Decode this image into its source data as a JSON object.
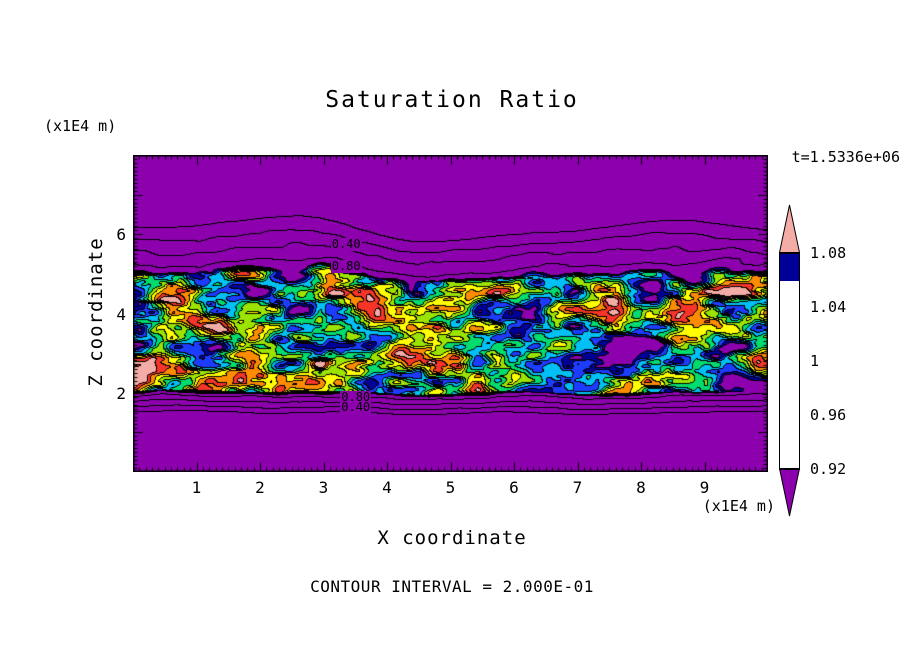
{
  "chart_data": {
    "type": "heatmap",
    "subtype": "filled-contour",
    "title": "Saturation Ratio",
    "xlabel": "X coordinate",
    "ylabel": "Z coordinate",
    "x_unit": "(x1E4 m)",
    "y_unit": "(x1E4 m)",
    "time_annotation": "t=1.5336e+06",
    "contour_interval_label": "CONTOUR INTERVAL = 2.000E-01",
    "contour_interval": 0.2,
    "x_range": [
      0,
      10
    ],
    "z_range": [
      0,
      8
    ],
    "x_ticks": [
      "1",
      "2",
      "3",
      "4",
      "5",
      "6",
      "7",
      "8",
      "9"
    ],
    "z_ticks": [
      "2",
      "4",
      "6"
    ],
    "contour_line_labels": [
      {
        "text": "0.40",
        "x": 3.35,
        "z": 5.74
      },
      {
        "text": "0.80",
        "x": 3.35,
        "z": 5.18
      },
      {
        "text": "0.80",
        "x": 3.5,
        "z": 1.87
      },
      {
        "text": "0.40",
        "x": 3.5,
        "z": 1.61
      }
    ],
    "colorbar": {
      "tick_labels": [
        "1.08",
        "1.04",
        "1",
        "0.96",
        "0.92"
      ],
      "levels": [
        0.92,
        0.94,
        0.96,
        0.98,
        1.0,
        1.02,
        1.04,
        1.06,
        1.08
      ],
      "segment_colors_top_to_bottom": [
        "#F63428",
        "#FF8C00",
        "#FFFF00",
        "#9BE400",
        "#00DC6E",
        "#00C0F5",
        "#1C3CFF",
        "#000096"
      ],
      "over_color": "#F4ACA6",
      "under_color": "#8C00AE"
    },
    "field": {
      "description": "Turbulent band of saturation-ratio values between z=1.4 and z=5.6 (x1E4 m); values fluctuate about 0.88 to 1.10 inside the band; background elsewhere is below the lowest color level (uniform purple). Labeled 0.40 and 0.80 contour lines (interval 0.2) mark the transitions above and below the band.",
      "band_z_extent": [
        1.4,
        5.6
      ],
      "band_value_range": [
        0.88,
        1.1
      ],
      "background_value": 0.0
    }
  }
}
